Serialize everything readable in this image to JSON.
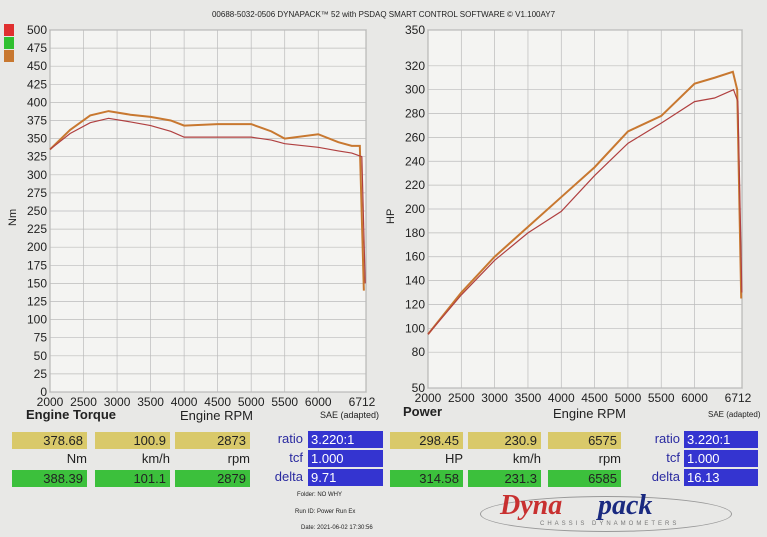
{
  "header": "00688-5032-0506 DYNAPACK™ 52 with PSDAQ SMART CONTROL SOFTWARE © V1.100AY7",
  "colors": {
    "run1": "#b04040",
    "run2": "#c87830",
    "legend": [
      "#e03030",
      "#30c030",
      "#c87830"
    ]
  },
  "chart_data": [
    {
      "type": "line",
      "title": "Engine Torque",
      "xlabel": "Engine RPM",
      "ylabel": "Nm",
      "note": "SAE (adapted)",
      "xlim": [
        2000,
        6712
      ],
      "ylim": [
        0,
        500
      ],
      "xticks": [
        2000,
        2500,
        3000,
        3500,
        4000,
        4500,
        5000,
        5500,
        6000,
        6712
      ],
      "yticks": [
        0,
        25,
        50,
        75,
        100,
        125,
        150,
        175,
        200,
        225,
        250,
        275,
        300,
        325,
        350,
        375,
        400,
        425,
        450,
        475,
        500
      ],
      "series": [
        {
          "x": [
            2000,
            2300,
            2600,
            2873,
            3200,
            3500,
            3800,
            4000,
            4500,
            5000,
            5300,
            5500,
            6000,
            6300,
            6500,
            6620,
            6680
          ],
          "y": [
            335,
            362,
            382,
            388,
            383,
            380,
            375,
            368,
            370,
            370,
            360,
            350,
            356,
            345,
            340,
            340,
            140
          ]
        },
        {
          "x": [
            2000,
            2300,
            2600,
            2873,
            3200,
            3500,
            3800,
            4000,
            4500,
            5000,
            5300,
            5500,
            6000,
            6300,
            6500,
            6650,
            6700
          ],
          "y": [
            335,
            357,
            372,
            378,
            373,
            368,
            360,
            352,
            352,
            352,
            348,
            343,
            338,
            333,
            330,
            325,
            150
          ]
        }
      ]
    },
    {
      "type": "line",
      "title": "Power",
      "xlabel": "Engine RPM",
      "ylabel": "HP",
      "note": "SAE (adapted)",
      "xlim": [
        2000,
        6712
      ],
      "ylim": [
        50,
        350
      ],
      "xticks": [
        2000,
        2500,
        3000,
        3500,
        4000,
        4500,
        5000,
        5500,
        6000,
        6712
      ],
      "yticks": [
        50,
        80,
        100,
        120,
        140,
        160,
        180,
        200,
        220,
        240,
        260,
        280,
        300,
        320,
        350
      ],
      "series": [
        {
          "x": [
            2000,
            2500,
            3000,
            3500,
            4000,
            4500,
            5000,
            5500,
            6000,
            6300,
            6575,
            6640,
            6700
          ],
          "y": [
            95,
            130,
            160,
            185,
            210,
            235,
            265,
            278,
            305,
            310,
            315,
            300,
            125
          ]
        },
        {
          "x": [
            2000,
            2500,
            3000,
            3500,
            4000,
            4500,
            5000,
            5500,
            6000,
            6300,
            6585,
            6650,
            6710
          ],
          "y": [
            95,
            128,
            157,
            180,
            198,
            228,
            255,
            272,
            290,
            293,
            300,
            290,
            130
          ]
        }
      ]
    }
  ],
  "torque": {
    "yellow": [
      "378.68",
      "100.9",
      "2873"
    ],
    "units": [
      "Nm",
      "km/h",
      "rpm"
    ],
    "green": [
      "388.39",
      "101.1",
      "2879"
    ],
    "ratio": "3.220:1",
    "tcf": "1.000",
    "delta": "9.71"
  },
  "power": {
    "yellow": [
      "298.45",
      "230.9",
      "6575"
    ],
    "units": [
      "HP",
      "km/h",
      "rpm"
    ],
    "green": [
      "314.58",
      "231.3",
      "6585"
    ],
    "ratio": "3.220:1",
    "tcf": "1.000",
    "delta": "16.13"
  },
  "keys": {
    "ratio": "ratio",
    "tcf": "tcf",
    "delta": "delta"
  },
  "info": {
    "folder": "Folder:  NO WHY",
    "run": "Run ID:  Power Run Ex",
    "date": "Date:  2021-06-02 17:30:56"
  },
  "logo": {
    "text1": "Dyna",
    "text2": "pack",
    "sub": "CHASSIS DYNAMOMETERS"
  }
}
